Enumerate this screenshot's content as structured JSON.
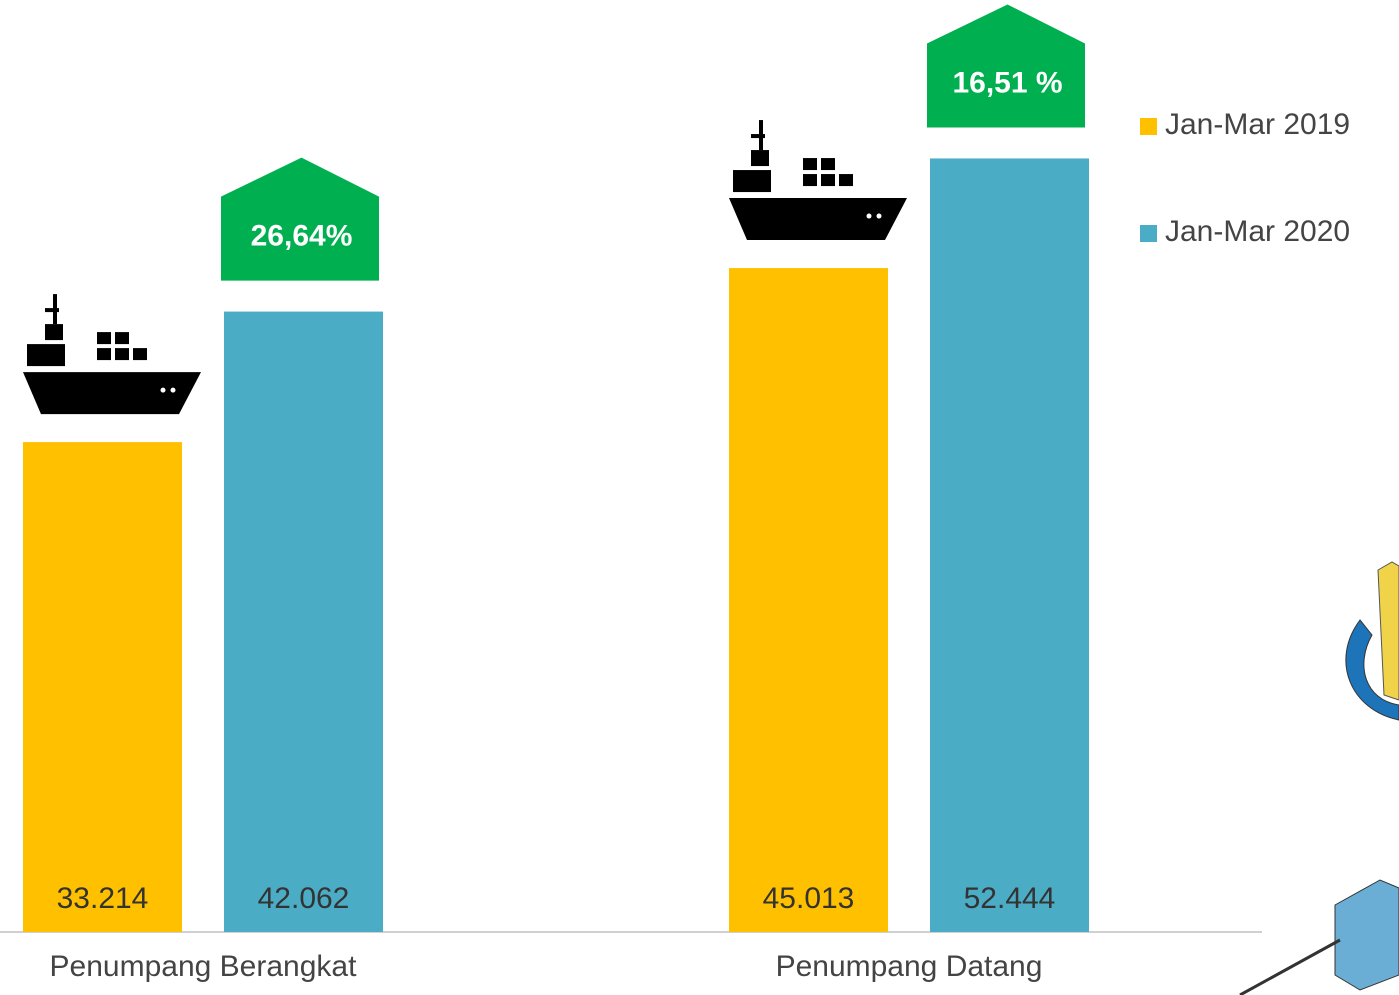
{
  "chart_data": {
    "type": "bar",
    "categories": [
      "Penumpang Berangkat",
      "Penumpang Datang"
    ],
    "series": [
      {
        "name": "Jan-Mar 2019",
        "color": "#FFC000",
        "values": [
          33214,
          45013
        ],
        "value_labels": [
          "33.214",
          "45.013"
        ]
      },
      {
        "name": "Jan-Mar 2020",
        "color": "#4BACC6",
        "values": [
          42062,
          52444
        ],
        "value_labels": [
          "42.062",
          "52.444"
        ]
      }
    ],
    "annotations": [
      "26,64%",
      "16,51 %"
    ],
    "annotation_color": "#00B050",
    "legend": "top-right"
  }
}
